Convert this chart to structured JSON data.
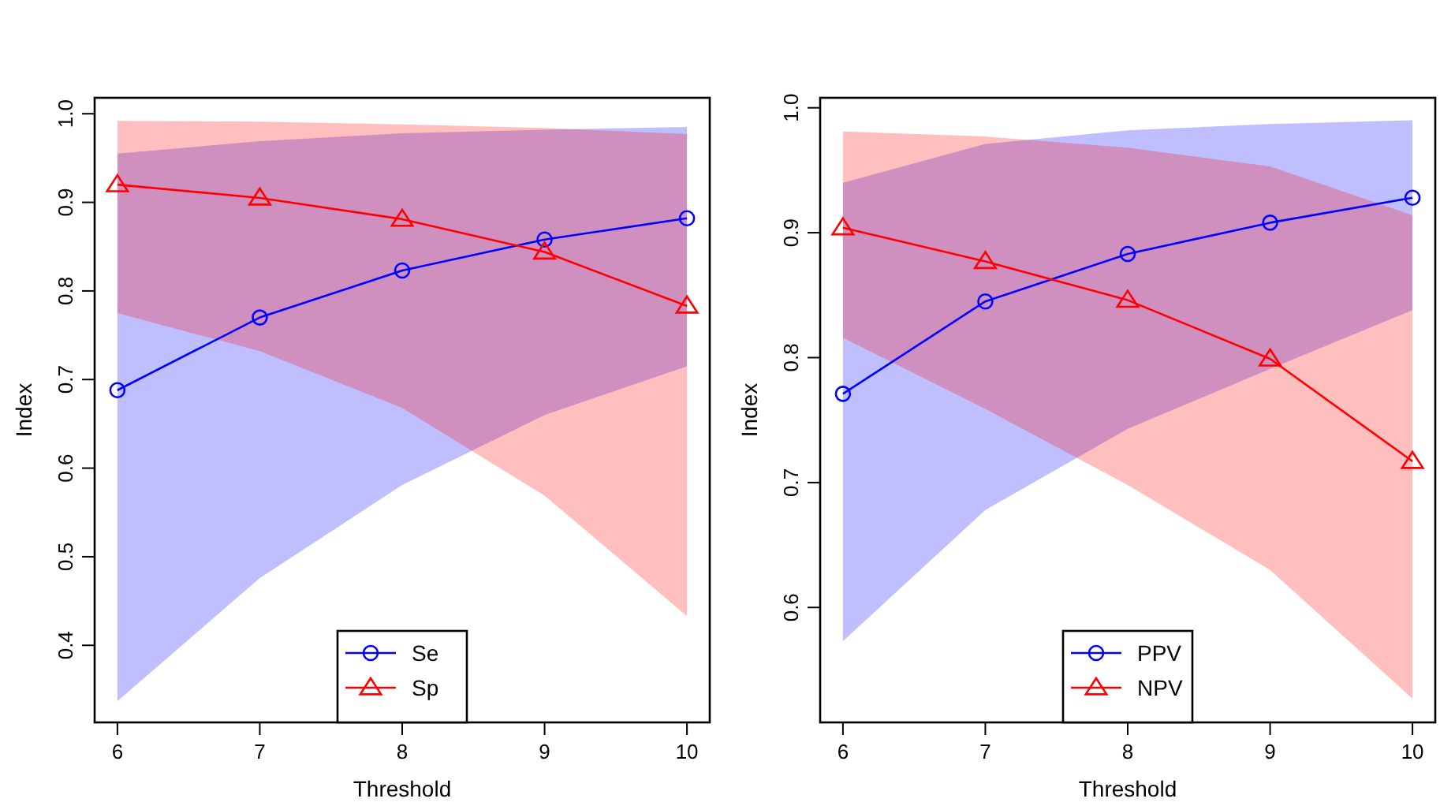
{
  "chart_data": [
    {
      "type": "line",
      "xlabel": "Threshold",
      "ylabel": "Index",
      "x": [
        6,
        7,
        8,
        9,
        10
      ],
      "xlim": [
        5.84,
        10.16
      ],
      "xticks": [
        6,
        7,
        8,
        9,
        10
      ],
      "ylim": [
        0.313,
        1.018
      ],
      "yticks": [
        0.4,
        0.5,
        0.6,
        0.7,
        0.8,
        0.9,
        {
          "value": 1,
          "label": "1.0"
        }
      ],
      "grid": false,
      "legend": "bottom",
      "line_style": "solid",
      "series": [
        {
          "name": "Se",
          "color": "#0000ff",
          "marker": "circle",
          "values": [
            0.688,
            0.77,
            0.823,
            0.858,
            0.882
          ],
          "lower": [
            0.337,
            0.476,
            0.581,
            0.66,
            0.715
          ],
          "upper": [
            0.955,
            0.969,
            0.978,
            0.982,
            0.985
          ]
        },
        {
          "name": "Sp",
          "color": "#ff0000",
          "marker": "triangle",
          "values": [
            0.92,
            0.905,
            0.881,
            0.844,
            0.783
          ],
          "lower": [
            0.775,
            0.732,
            0.668,
            0.569,
            0.433
          ],
          "upper": [
            0.992,
            0.991,
            0.988,
            0.984,
            0.977
          ]
        }
      ]
    },
    {
      "type": "line",
      "xlabel": "Threshold",
      "ylabel": "Index",
      "x": [
        6,
        7,
        8,
        9,
        10
      ],
      "xlim": [
        5.84,
        10.16
      ],
      "xticks": [
        6,
        7,
        8,
        9,
        10
      ],
      "ylim": [
        0.508,
        1.008
      ],
      "yticks": [
        0.6,
        0.7,
        0.8,
        0.9,
        {
          "value": 1,
          "label": "1.0"
        }
      ],
      "grid": false,
      "legend": "bottom",
      "line_style": "solid",
      "series": [
        {
          "name": "PPV",
          "color": "#0000ff",
          "marker": "circle",
          "values": [
            0.771,
            0.845,
            0.883,
            0.908,
            0.928
          ],
          "lower": [
            0.573,
            0.678,
            0.743,
            0.791,
            0.838
          ],
          "upper": [
            0.94,
            0.971,
            0.982,
            0.987,
            0.99
          ]
        },
        {
          "name": "NPV",
          "color": "#ff0000",
          "marker": "triangle",
          "values": [
            0.904,
            0.877,
            0.846,
            0.799,
            0.717
          ],
          "lower": [
            0.816,
            0.759,
            0.698,
            0.63,
            0.527
          ],
          "upper": [
            0.981,
            0.977,
            0.968,
            0.953,
            0.914
          ]
        }
      ]
    }
  ]
}
